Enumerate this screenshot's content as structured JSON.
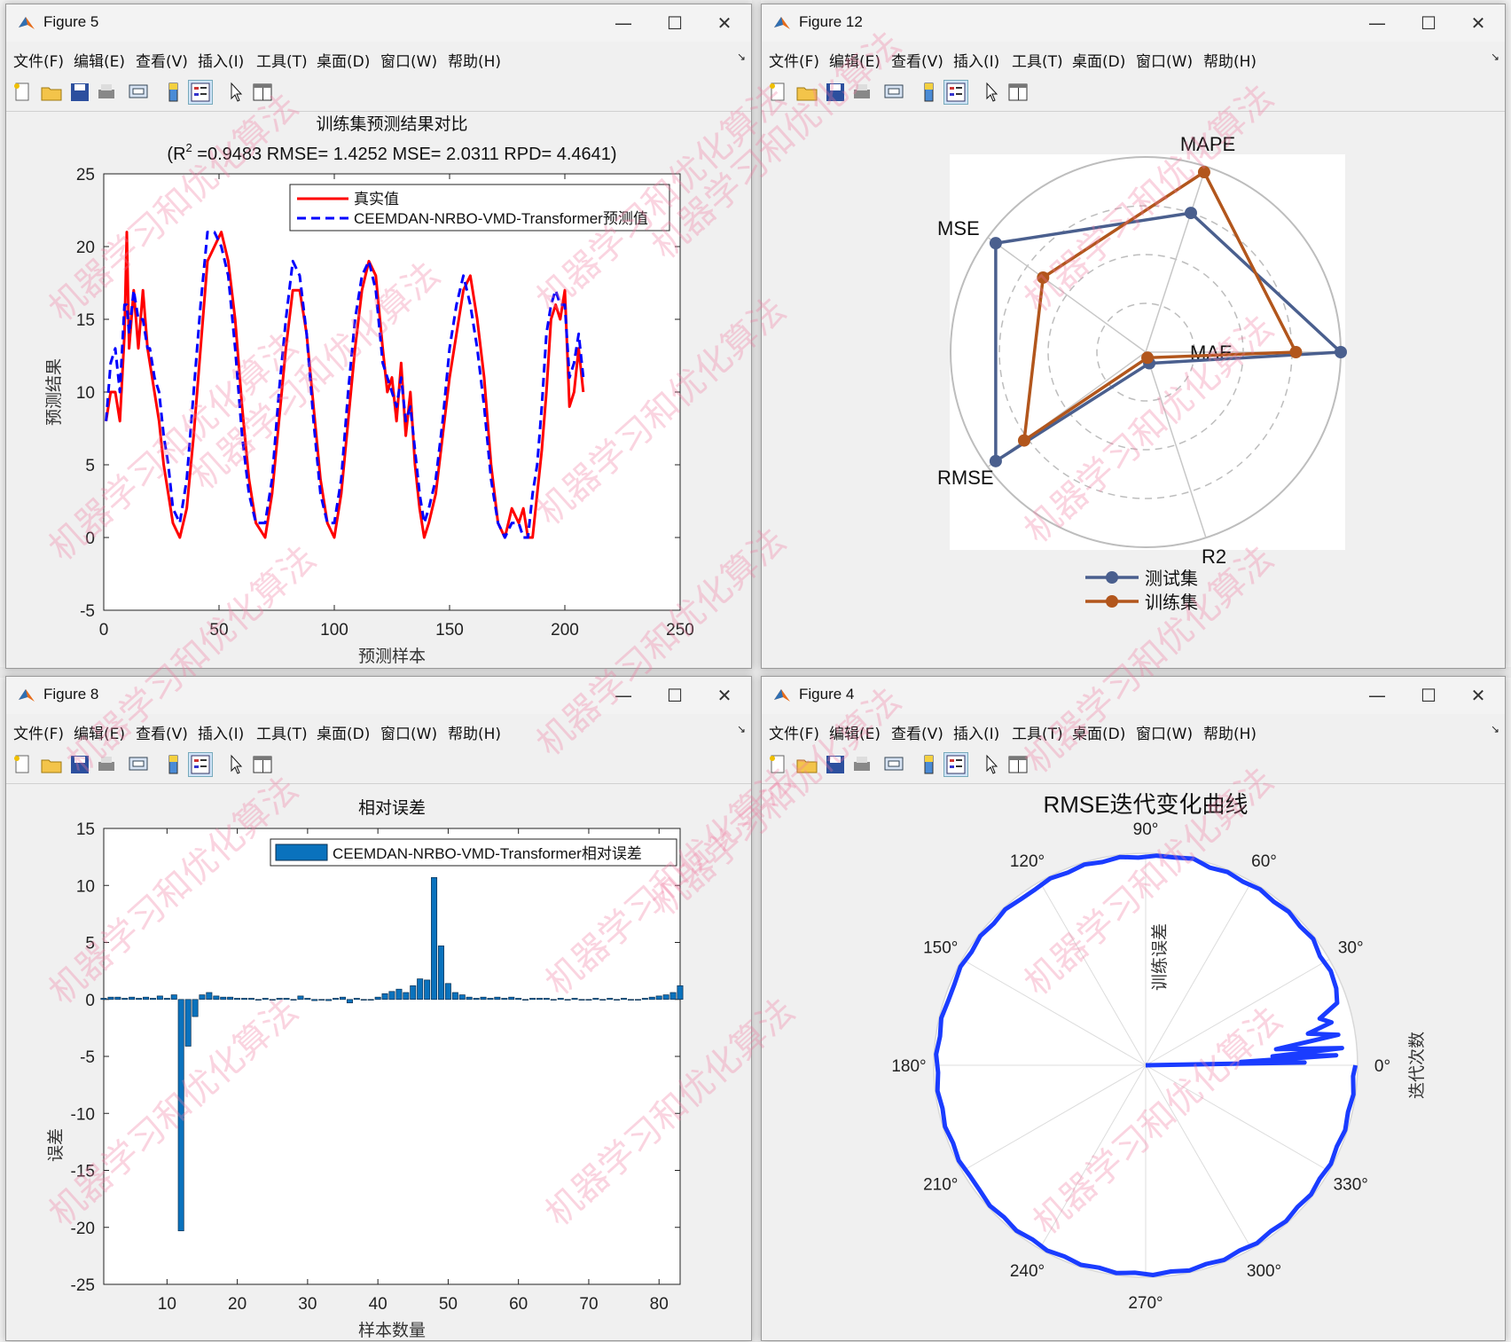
{
  "menu": [
    "文件(F)",
    "编辑(E)",
    "查看(V)",
    "插入(I)",
    "工具(T)",
    "桌面(D)",
    "窗口(W)",
    "帮助(H)"
  ],
  "window_controls": {
    "minimize": "—",
    "maximize": "☐",
    "close": "✕"
  },
  "colors": {
    "red": "#ff0000",
    "blue": "#0000ff",
    "testset": "#4a5f8e",
    "trainset": "#b2561c",
    "bar": "#0a72bd",
    "polar": "#1a3cff"
  },
  "watermark": "机器学习和优化算法",
  "fig5": {
    "title": "Figure 5",
    "chart_data": {
      "type": "line",
      "title_line1": "训练集预测结果对比",
      "title_line2_pre": "(R",
      "title_line2_sup": "2",
      "title_line2_post": " =0.9483 RMSE= 1.4252 MSE= 2.0311 RPD= 4.4641)",
      "xlabel": "预测样本",
      "ylabel": "预测结果",
      "xlim": [
        0,
        250
      ],
      "ylim": [
        -5,
        25
      ],
      "xticks": [
        "0",
        "50",
        "100",
        "150",
        "200",
        "250"
      ],
      "yticks": [
        "-5",
        "0",
        "5",
        "10",
        "15",
        "20",
        "25"
      ],
      "legend": [
        "真实值",
        "CEEMDAN-NRBO-VMD-Transformer预测值"
      ],
      "legend_position": "top-right",
      "series": [
        {
          "name": "真实值",
          "x": [
            1,
            3,
            5,
            7,
            9,
            10,
            11,
            13,
            15,
            17,
            19,
            20,
            22,
            24,
            26,
            28,
            30,
            33,
            36,
            39,
            42,
            45,
            48,
            51,
            54,
            57,
            60,
            63,
            66,
            70,
            73,
            76,
            79,
            82,
            85,
            88,
            91,
            94,
            97,
            100,
            103,
            106,
            109,
            112,
            115,
            118,
            121,
            123,
            125,
            127,
            129,
            131,
            133,
            135,
            137,
            139,
            141,
            144,
            147,
            150,
            153,
            156,
            159,
            162,
            165,
            168,
            171,
            174,
            177,
            180,
            182,
            184,
            186,
            188,
            190,
            192,
            194,
            196,
            198,
            200,
            202,
            204,
            206,
            208
          ],
          "y": [
            8,
            10,
            10,
            8,
            14,
            21,
            13,
            17,
            13,
            17,
            13,
            12,
            10,
            8,
            5,
            3,
            1,
            0,
            2,
            7,
            13,
            19,
            20,
            21,
            19,
            15,
            9,
            4,
            1,
            0,
            3,
            8,
            13,
            17,
            17,
            14,
            9,
            4,
            1,
            0,
            3,
            8,
            13,
            17,
            19,
            18,
            13,
            10,
            11,
            8,
            12,
            7,
            10,
            5,
            2,
            0,
            1,
            3,
            7,
            11,
            14,
            17,
            18,
            15,
            11,
            5,
            1,
            0,
            2,
            1,
            2,
            0,
            0,
            3,
            6,
            10,
            15,
            16,
            15,
            17,
            9,
            10,
            13,
            10
          ]
        },
        {
          "name": "CEEMDAN-NRBO-VMD-Transformer预测值",
          "x": [
            1,
            3,
            5,
            7,
            9,
            10,
            11,
            13,
            15,
            17,
            19,
            20,
            22,
            24,
            26,
            28,
            30,
            33,
            36,
            39,
            42,
            45,
            48,
            51,
            54,
            57,
            60,
            63,
            66,
            70,
            73,
            76,
            79,
            82,
            85,
            88,
            91,
            94,
            97,
            100,
            103,
            106,
            109,
            112,
            115,
            118,
            121,
            123,
            125,
            127,
            129,
            131,
            133,
            135,
            137,
            139,
            141,
            144,
            147,
            150,
            153,
            156,
            159,
            162,
            165,
            168,
            171,
            174,
            177,
            180,
            182,
            184,
            186,
            188,
            190,
            192,
            194,
            196,
            198,
            200,
            202,
            204,
            206,
            208
          ],
          "y": [
            8,
            12,
            13,
            10,
            16,
            16,
            14,
            17,
            15,
            15,
            13,
            13,
            11,
            10,
            7,
            5,
            2,
            1,
            4,
            10,
            16,
            21,
            21,
            20,
            18,
            13,
            7,
            3,
            1,
            1,
            4,
            10,
            15,
            19,
            18,
            14,
            8,
            3,
            1,
            1,
            4,
            10,
            15,
            18,
            19,
            17,
            12,
            11,
            10,
            9,
            11,
            8,
            9,
            6,
            3,
            1,
            2,
            4,
            8,
            13,
            16,
            18,
            16,
            13,
            9,
            4,
            1,
            0,
            1,
            1,
            0,
            0,
            3,
            5,
            9,
            14,
            16,
            17,
            16,
            16,
            11,
            12,
            14,
            11
          ]
        }
      ]
    }
  },
  "fig12": {
    "title": "Figure 12",
    "chart_data": {
      "type": "radar",
      "axes": [
        "MAE",
        "MAPE",
        "MSE",
        "RMSE",
        "R2"
      ],
      "series": [
        {
          "name": "测试集",
          "values": [
            1.0,
            0.75,
            0.95,
            0.95,
            0.06
          ]
        },
        {
          "name": "训练集",
          "values": [
            0.77,
            0.97,
            0.65,
            0.77,
            0.03
          ]
        }
      ],
      "legend": [
        "测试集",
        "训练集"
      ],
      "legend_position": "bottom"
    }
  },
  "fig8": {
    "title": "Figure 8",
    "chart_data": {
      "type": "bar",
      "title": "相对误差",
      "xlabel": "样本数量",
      "ylabel": "误差",
      "xlim": [
        1,
        83
      ],
      "ylim": [
        -25,
        15
      ],
      "xticks": [
        "10",
        "20",
        "30",
        "40",
        "50",
        "60",
        "70",
        "80"
      ],
      "yticks": [
        "-25",
        "-20",
        "-15",
        "-10",
        "-5",
        "0",
        "5",
        "10",
        "15"
      ],
      "legend": [
        "CEEMDAN-NRBO-VMD-Transformer相对误差"
      ],
      "legend_position": "top-right",
      "values": [
        0.1,
        0.2,
        0.2,
        0.1,
        0.2,
        0.1,
        0.2,
        0.1,
        0.3,
        0.1,
        0.4,
        -20.3,
        -4.1,
        -1.5,
        0.4,
        0.6,
        0.3,
        0.2,
        0.2,
        0.1,
        0.1,
        0.1,
        0.0,
        0.1,
        0.0,
        0.1,
        0.1,
        0.0,
        0.3,
        0.1,
        -0.1,
        0.0,
        -0.1,
        0.1,
        0.2,
        -0.3,
        0.1,
        0.0,
        0.0,
        0.2,
        0.5,
        0.7,
        0.9,
        0.6,
        1.2,
        1.8,
        1.7,
        10.7,
        4.7,
        1.4,
        0.6,
        0.4,
        0.2,
        0.1,
        0.2,
        0.1,
        0.2,
        0.1,
        0.2,
        0.1,
        0.0,
        0.1,
        0.1,
        0.1,
        0.0,
        0.1,
        0.0,
        0.1,
        0.0,
        0.0,
        0.1,
        0.0,
        0.1,
        0.0,
        0.1,
        0.0,
        0.0,
        0.1,
        0.2,
        0.3,
        0.4,
        0.6,
        1.2
      ]
    }
  },
  "fig4": {
    "title": "Figure 4",
    "chart_data": {
      "type": "polar",
      "title": "RMSE迭代变化曲线",
      "theta_label": "迭代次数",
      "r_label": "训练误差",
      "theta_ticks": [
        "0°",
        "30°",
        "60°",
        "90°",
        "120°",
        "150°",
        "180°",
        "210°",
        "240°",
        "270°",
        "300°",
        "330°"
      ],
      "series": [
        {
          "name": "",
          "theta_deg": [
            0,
            1,
            2,
            3,
            4,
            5,
            7,
            9,
            11,
            13,
            15,
            18,
            22,
            27,
            32,
            37,
            42,
            47,
            52,
            57,
            62,
            67,
            72,
            77,
            82,
            87,
            92,
            97,
            102,
            107,
            112,
            117,
            122,
            127,
            132,
            137,
            142,
            147,
            152,
            157,
            162,
            167,
            172,
            177,
            182,
            187,
            192,
            197,
            202,
            207,
            212,
            217,
            222,
            227,
            232,
            237,
            242,
            247,
            252,
            257,
            262,
            267,
            272,
            277,
            282,
            287,
            292,
            297,
            302,
            307,
            312,
            317,
            322,
            327,
            332,
            337,
            342,
            347,
            352,
            357,
            360
          ],
          "r": [
            0,
            0.75,
            0.45,
            0.9,
            0.6,
            0.93,
            0.62,
            0.92,
            0.78,
            0.9,
            0.85,
            0.95,
            0.97,
            0.98,
            0.97,
            0.99,
            0.98,
            0.99,
            0.98,
            0.99,
            0.98,
            0.99,
            0.98,
            1.0,
            0.99,
            0.99,
            0.98,
            0.99,
            0.98,
            0.99,
            0.98,
            0.99,
            0.98,
            0.98,
            0.99,
            0.98,
            0.99,
            0.98,
            0.99,
            0.98,
            0.98,
            0.99,
            0.98,
            0.99,
            0.98,
            0.99,
            0.98,
            0.99,
            0.98,
            0.99,
            0.98,
            0.98,
            0.99,
            0.98,
            0.99,
            0.98,
            0.99,
            0.98,
            0.99,
            0.98,
            0.99,
            0.98,
            0.99,
            0.98,
            0.99,
            0.98,
            0.99,
            0.98,
            0.99,
            0.98,
            0.99,
            0.98,
            0.99,
            0.98,
            0.99,
            0.98,
            0.99,
            0.98,
            0.99,
            0.98,
            0.99
          ]
        }
      ]
    }
  }
}
